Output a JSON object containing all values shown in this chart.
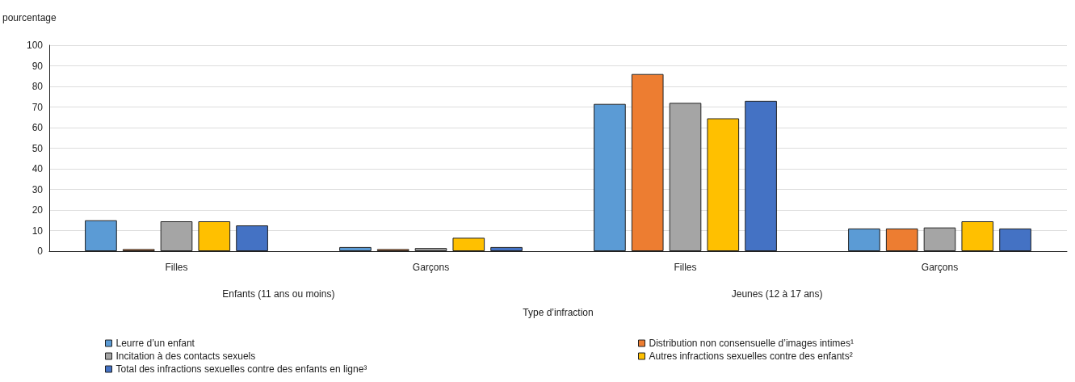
{
  "chart_data": {
    "type": "bar",
    "ylabel": "pourcentage",
    "xlabel": "Type d’infraction",
    "categories": [
      "Filles",
      "Garçons",
      "Filles",
      "Garçons"
    ],
    "annotations": [
      "Enfants (11 ans ou moins)",
      "Jeunes (12 à 17 ans)"
    ],
    "series": [
      {
        "name": "Leurre d’un enfant",
        "color": "#5b9bd5",
        "values": [
          15,
          2,
          71.5,
          11
        ]
      },
      {
        "name": "Distribution non consensuelle d’images intimes¹",
        "color": "#ed7d31",
        "values": [
          1,
          1,
          86,
          11
        ]
      },
      {
        "name": "Incitation à des contacts sexuels",
        "color": "#a5a5a5",
        "values": [
          14.5,
          1.5,
          72,
          11.5
        ]
      },
      {
        "name": "Autres infractions sexuelles contre des enfants²",
        "color": "#ffc000",
        "values": [
          14.5,
          6.5,
          64.5,
          14.5
        ]
      },
      {
        "name": "Total des infractions sexuelles contre des enfants en ligne³",
        "color": "#4472c4",
        "values": [
          12.5,
          2,
          73,
          11
        ]
      }
    ],
    "ylim": [
      0,
      100
    ],
    "yticks": [
      0,
      10,
      20,
      30,
      40,
      50,
      60,
      70,
      80,
      90,
      100
    ],
    "grid": "y",
    "legend": "bottom"
  }
}
